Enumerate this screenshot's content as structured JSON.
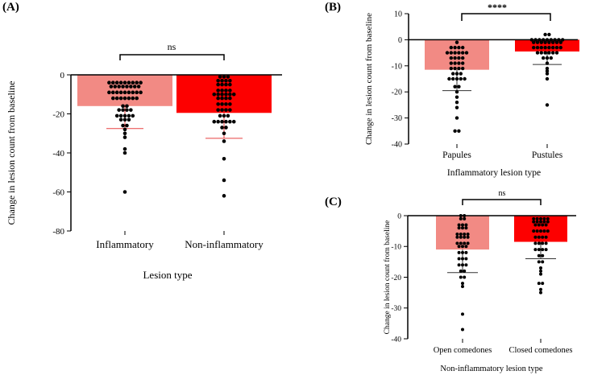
{
  "colors": {
    "bar_light": "#f28a84",
    "bar_red": "#fd0000",
    "point": "#000000",
    "axis": "#000000",
    "err_red": "#e84040",
    "err_dark": "#333333"
  },
  "chart_data": [
    {
      "id": "A",
      "panel_label": "(A)",
      "type": "bar",
      "title": "",
      "xlabel": "Lesion type",
      "ylabel": "Change in lesion count from baseline",
      "ylim": [
        -80,
        0
      ],
      "yticks": [
        0,
        -20,
        -40,
        -60,
        -80
      ],
      "yticklabels": [
        "0",
        "-20",
        "-40",
        "-60",
        "-80"
      ],
      "grid": false,
      "significance": "ns",
      "categories": [
        "Inflammatory",
        "Non-inflammatory"
      ],
      "values": [
        -16,
        -19.5
      ],
      "error_low": [
        -27.5,
        -32.5
      ],
      "series_colors": [
        "#f28a84",
        "#fd0000"
      ],
      "error_colors": [
        "#e84040",
        "#e84040"
      ],
      "points": [
        [
          -4,
          -4,
          -4,
          -4,
          -4,
          -4,
          -4,
          -4,
          -4,
          -6,
          -6,
          -6,
          -6,
          -6,
          -6,
          -6,
          -6,
          -9,
          -9,
          -9,
          -9,
          -9,
          -9,
          -9,
          -9,
          -9,
          -12,
          -12,
          -12,
          -12,
          -12,
          -12,
          -12,
          -16,
          -16,
          -18,
          -18,
          -18,
          -18,
          -21,
          -21,
          -21,
          -21,
          -21,
          -23,
          -23,
          -23,
          -26,
          -26,
          -28,
          -30,
          -32,
          -38,
          -40,
          -60
        ],
        [
          -1,
          -1,
          -1,
          -3,
          -3,
          -3,
          -3,
          -5,
          -5,
          -5,
          -5,
          -8,
          -8,
          -8,
          -8,
          -10,
          -10,
          -10,
          -10,
          -10,
          -10,
          -12,
          -12,
          -12,
          -12,
          -15,
          -15,
          -15,
          -15,
          -18,
          -18,
          -18,
          -18,
          -21,
          -21,
          -21,
          -24,
          -24,
          -24,
          -24,
          -24,
          -24,
          -27,
          -27,
          -30,
          -34,
          -43,
          -54,
          -62
        ]
      ]
    },
    {
      "id": "B",
      "panel_label": "(B)",
      "type": "bar",
      "title": "",
      "xlabel": "Inflammatory lesion type",
      "ylabel": "Change in lesion count from baseline",
      "ylim": [
        -40,
        10
      ],
      "yticks": [
        10,
        0,
        -10,
        -20,
        -30,
        -40
      ],
      "yticklabels": [
        "10",
        "0",
        "-10",
        "-20",
        "-30",
        "-40"
      ],
      "grid": false,
      "significance": "****",
      "categories": [
        "Papules",
        "Pustules"
      ],
      "values": [
        -11.5,
        -4.5
      ],
      "error_low": [
        -19.5,
        -9.5
      ],
      "series_colors": [
        "#f28a84",
        "#fd0000"
      ],
      "error_colors": [
        "#333333",
        "#333333"
      ],
      "points": [
        [
          -1,
          -3,
          -3,
          -3,
          -3,
          -5,
          -5,
          -5,
          -5,
          -5,
          -5,
          -7,
          -7,
          -7,
          -7,
          -9,
          -9,
          -9,
          -9,
          -11,
          -11,
          -11,
          -11,
          -13,
          -13,
          -13,
          -15,
          -15,
          -15,
          -15,
          -15,
          -18,
          -18,
          -20,
          -22,
          -24,
          -26,
          -30,
          -35,
          -35
        ],
        [
          2,
          2,
          0,
          0,
          0,
          0,
          0,
          0,
          0,
          0,
          0,
          -1,
          -1,
          -1,
          -1,
          -1,
          -1,
          -1,
          -1,
          -3,
          -3,
          -3,
          -3,
          -3,
          -3,
          -3,
          -3,
          -5,
          -5,
          -5,
          -5,
          -5,
          -5,
          -7,
          -7,
          -7,
          -9,
          -11,
          -12,
          -13,
          -15,
          -25
        ]
      ]
    },
    {
      "id": "C",
      "panel_label": "(C)",
      "type": "bar",
      "title": "",
      "xlabel": "Non-inflammatory lesion type",
      "ylabel": "Change in lesion count from baseline",
      "ylim": [
        -40,
        0
      ],
      "yticks": [
        0,
        -10,
        -20,
        -30,
        -40
      ],
      "yticklabels": [
        "0",
        "-10",
        "-20",
        "-30",
        "-40"
      ],
      "grid": false,
      "significance": "ns",
      "categories": [
        "Open comedones",
        "Closed comedones"
      ],
      "values": [
        -11,
        -8.5
      ],
      "error_low": [
        -18.5,
        -14
      ],
      "series_colors": [
        "#f28a84",
        "#fd0000"
      ],
      "error_colors": [
        "#333333",
        "#333333"
      ],
      "points": [
        [
          0,
          0,
          -1,
          -1,
          -3,
          -3,
          -3,
          -4,
          -4,
          -4,
          -6,
          -6,
          -6,
          -6,
          -7,
          -7,
          -7,
          -7,
          -9,
          -9,
          -9,
          -9,
          -10,
          -10,
          -10,
          -12,
          -12,
          -12,
          -14,
          -14,
          -14,
          -16,
          -16,
          -16,
          -18,
          -18,
          -20,
          -20,
          -22,
          -23,
          -32,
          -37
        ],
        [
          -1,
          -1,
          -1,
          -1,
          -1,
          -2,
          -2,
          -2,
          -2,
          -2,
          -3,
          -3,
          -3,
          -3,
          -5,
          -5,
          -5,
          -5,
          -5,
          -7,
          -7,
          -7,
          -7,
          -9,
          -9,
          -9,
          -9,
          -11,
          -11,
          -11,
          -11,
          -13,
          -13,
          -15,
          -15,
          -17,
          -18,
          -19,
          -22,
          -22,
          -24,
          -25
        ]
      ]
    }
  ]
}
